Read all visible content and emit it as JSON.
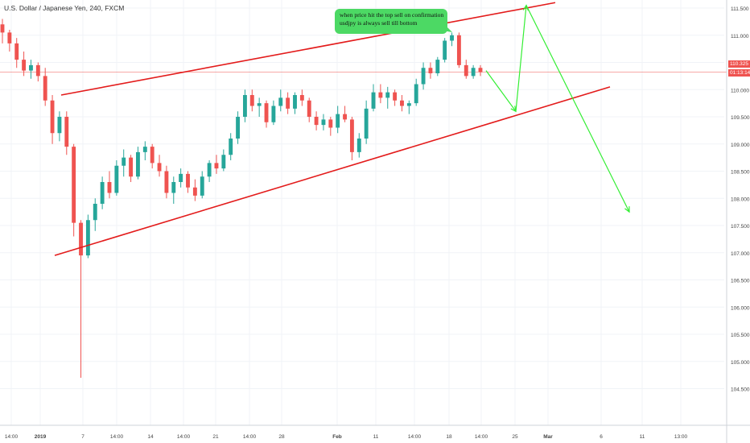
{
  "header": {
    "symbol_title": "U.S. Dollar / Japanese Yen, 240, FXCM"
  },
  "annotation": {
    "line1": "when price hit the top sell on confirmation",
    "line2": "usdjpy is always sell till bottom"
  },
  "price_tags": {
    "last_price": "110.325",
    "countdown": "01:13:14"
  },
  "colors": {
    "bull": "#26a69a",
    "bear": "#ef5350",
    "channel": "#e31b1b",
    "arrow": "#33ee33",
    "note_bg": "#4cd964",
    "price_line": "#ef5350"
  },
  "chart_data": {
    "type": "candlestick",
    "title": "U.S. Dollar / Japanese Yen, 240, FXCM",
    "y_ticks": [
      "111.500",
      "111.000",
      "110.500",
      "110.000",
      "109.500",
      "109.000",
      "108.500",
      "108.000",
      "107.500",
      "107.000",
      "106.500",
      "106.000",
      "105.500",
      "105.000",
      "104.500"
    ],
    "x_ticks": [
      "14:00",
      "2019",
      "7",
      "14:00",
      "14",
      "14:00",
      "21",
      "14:00",
      "28",
      "Feb",
      "11",
      "14:00",
      "18",
      "14:00",
      "25",
      "Mar",
      "6",
      "11",
      "13:00"
    ],
    "ylim": [
      104.4,
      111.6
    ],
    "last_price": 110.325,
    "channel_upper": {
      "from": [
        0.0,
        109.9
      ],
      "to": [
        1.0,
        111.6
      ]
    },
    "channel_lower": {
      "from": [
        0.0,
        106.95
      ],
      "to": [
        1.0,
        110.05
      ]
    },
    "projection": [
      {
        "step": 0,
        "price": 110.35
      },
      {
        "step": 1,
        "price": 109.6
      },
      {
        "step": 2,
        "price": 111.55
      },
      {
        "step": 3,
        "price": 107.75
      }
    ],
    "series": [
      {
        "type": "candlestick",
        "values": [
          [
            111.2,
            111.3,
            110.85,
            111.05
          ],
          [
            111.05,
            111.1,
            110.7,
            110.85
          ],
          [
            110.85,
            110.95,
            110.4,
            110.55
          ],
          [
            110.55,
            110.7,
            110.25,
            110.35
          ],
          [
            110.35,
            110.55,
            110.2,
            110.45
          ],
          [
            110.45,
            110.5,
            110.15,
            110.25
          ],
          [
            110.25,
            110.4,
            109.7,
            109.8
          ],
          [
            109.8,
            109.9,
            109.0,
            109.2
          ],
          [
            109.2,
            109.6,
            109.05,
            109.5
          ],
          [
            109.5,
            109.6,
            108.8,
            108.95
          ],
          [
            108.95,
            109.0,
            107.3,
            107.55
          ],
          [
            107.55,
            107.6,
            104.7,
            106.95
          ],
          [
            106.95,
            107.7,
            106.9,
            107.6
          ],
          [
            107.6,
            108.0,
            107.4,
            107.9
          ],
          [
            107.9,
            108.4,
            107.8,
            108.3
          ],
          [
            108.3,
            108.5,
            108.0,
            108.1
          ],
          [
            108.1,
            108.7,
            108.05,
            108.6
          ],
          [
            108.6,
            108.9,
            108.4,
            108.75
          ],
          [
            108.75,
            108.8,
            108.3,
            108.4
          ],
          [
            108.4,
            108.95,
            108.35,
            108.85
          ],
          [
            108.85,
            109.05,
            108.7,
            108.95
          ],
          [
            108.95,
            109.0,
            108.55,
            108.65
          ],
          [
            108.65,
            108.8,
            108.4,
            108.5
          ],
          [
            108.5,
            108.6,
            108.0,
            108.1
          ],
          [
            108.1,
            108.4,
            107.9,
            108.3
          ],
          [
            108.3,
            108.55,
            108.2,
            108.45
          ],
          [
            108.45,
            108.5,
            108.1,
            108.2
          ],
          [
            108.2,
            108.35,
            107.95,
            108.05
          ],
          [
            108.05,
            108.5,
            108.0,
            108.4
          ],
          [
            108.4,
            108.7,
            108.3,
            108.65
          ],
          [
            108.65,
            108.8,
            108.45,
            108.55
          ],
          [
            108.55,
            108.9,
            108.5,
            108.8
          ],
          [
            108.8,
            109.2,
            108.7,
            109.1
          ],
          [
            109.1,
            109.6,
            109.0,
            109.5
          ],
          [
            109.5,
            110.0,
            109.4,
            109.9
          ],
          [
            109.9,
            110.0,
            109.6,
            109.7
          ],
          [
            109.7,
            109.85,
            109.5,
            109.75
          ],
          [
            109.75,
            109.8,
            109.3,
            109.4
          ],
          [
            109.4,
            109.8,
            109.35,
            109.7
          ],
          [
            109.7,
            110.0,
            109.6,
            109.85
          ],
          [
            109.85,
            109.95,
            109.55,
            109.65
          ],
          [
            109.65,
            109.95,
            109.55,
            109.9
          ],
          [
            109.9,
            110.0,
            109.7,
            109.8
          ],
          [
            109.8,
            109.85,
            109.4,
            109.5
          ],
          [
            109.5,
            109.6,
            109.25,
            109.35
          ],
          [
            109.35,
            109.55,
            109.25,
            109.45
          ],
          [
            109.45,
            109.5,
            109.15,
            109.3
          ],
          [
            109.3,
            109.7,
            109.2,
            109.55
          ],
          [
            109.55,
            109.7,
            109.4,
            109.45
          ],
          [
            109.45,
            109.5,
            108.7,
            108.85
          ],
          [
            108.85,
            109.2,
            108.75,
            109.1
          ],
          [
            109.1,
            109.8,
            109.0,
            109.65
          ],
          [
            109.65,
            110.1,
            109.6,
            109.95
          ],
          [
            109.95,
            110.1,
            109.75,
            109.85
          ],
          [
            109.85,
            110.05,
            109.65,
            109.95
          ],
          [
            109.95,
            110.0,
            109.7,
            109.8
          ],
          [
            109.8,
            109.9,
            109.6,
            109.7
          ],
          [
            109.7,
            109.8,
            109.55,
            109.75
          ],
          [
            109.75,
            110.2,
            109.7,
            110.1
          ],
          [
            110.1,
            110.5,
            110.0,
            110.4
          ],
          [
            110.4,
            110.5,
            110.2,
            110.3
          ],
          [
            110.3,
            110.6,
            110.25,
            110.55
          ],
          [
            110.55,
            110.95,
            110.5,
            110.9
          ],
          [
            110.9,
            111.05,
            110.8,
            111.0
          ],
          [
            111.0,
            111.05,
            110.4,
            110.45
          ],
          [
            110.45,
            110.55,
            110.2,
            110.25
          ],
          [
            110.25,
            110.45,
            110.2,
            110.4
          ],
          [
            110.4,
            110.45,
            110.25,
            110.32
          ]
        ]
      }
    ]
  }
}
